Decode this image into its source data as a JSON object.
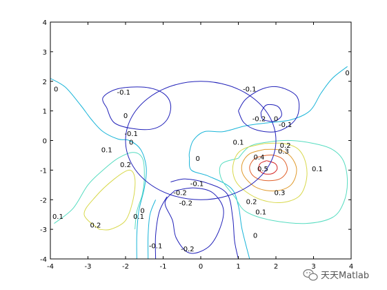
{
  "chart_data": {
    "type": "contour",
    "xlim": [
      -4,
      4
    ],
    "ylim": [
      -4,
      4
    ],
    "x_ticks": [
      "-4",
      "-3",
      "-2",
      "-1",
      "0",
      "1",
      "2",
      "3",
      "4"
    ],
    "y_ticks": [
      "4",
      "3",
      "2",
      "1",
      "0",
      "-1",
      "-2",
      "-3",
      "-4"
    ],
    "grid": false,
    "level_colors": {
      "-0.2": "#1f1fb8",
      "-0.1": "#1f1fb8",
      "0": "#18b4d8",
      "0.1": "#55dcc0",
      "0.2": "#d8d84a",
      "0.3": "#e09a2c",
      "0.4": "#e0602a",
      "0.5": "#d42020"
    },
    "circle": {
      "center": [
        0,
        0
      ],
      "radius": 2,
      "color": "#1f1fb8"
    },
    "contours": [
      {
        "level": "0",
        "points": [
          [
            -4,
            2.1
          ],
          [
            -3.6,
            1.8
          ],
          [
            -3.2,
            1.2
          ],
          [
            -2.9,
            0.7
          ],
          [
            -2.6,
            0.3
          ],
          [
            -2.2,
            0.05
          ],
          [
            -1.9,
            0.0
          ],
          [
            -1.6,
            -0.3
          ],
          [
            -1.45,
            -0.9
          ],
          [
            -1.5,
            -1.6
          ],
          [
            -1.65,
            -2.4
          ],
          [
            -1.7,
            -3.2
          ],
          [
            -1.7,
            -4
          ]
        ]
      },
      {
        "level": "0",
        "points": [
          [
            -0.3,
            -0.6
          ],
          [
            -0.25,
            -1.0
          ],
          [
            0.2,
            -1.2
          ],
          [
            0.8,
            -1.6
          ],
          [
            1.0,
            -2.2
          ],
          [
            1.1,
            -3.0
          ],
          [
            1.3,
            -4
          ]
        ]
      },
      {
        "level": "0",
        "points": [
          [
            3.9,
            2.5
          ],
          [
            3.5,
            2.1
          ],
          [
            3.2,
            1.6
          ],
          [
            2.9,
            1.0
          ],
          [
            2.4,
            0.7
          ],
          [
            1.8,
            0.6
          ],
          [
            1.2,
            0.5
          ],
          [
            0.6,
            0.3
          ],
          [
            0.1,
            0.3
          ],
          [
            -0.2,
            0.0
          ],
          [
            -0.3,
            -0.4
          ],
          [
            -0.3,
            -0.6
          ]
        ]
      },
      {
        "level": "0",
        "points": [
          [
            -1.2,
            -2.0
          ],
          [
            -1.35,
            -2.5
          ],
          [
            -1.4,
            -3.2
          ],
          [
            -1.4,
            -4
          ]
        ]
      },
      {
        "level": "0.1",
        "points": [
          [
            -3.9,
            -2.8
          ],
          [
            -3.4,
            -2.3
          ],
          [
            -3.0,
            -1.5
          ],
          [
            -2.6,
            -1.0
          ],
          [
            -2.2,
            -0.6
          ],
          [
            -1.8,
            -0.4
          ],
          [
            -1.55,
            -0.6
          ],
          [
            -1.5,
            -1.2
          ],
          [
            -1.55,
            -1.8
          ],
          [
            -1.7,
            -2.4
          ],
          [
            -1.75,
            -3.0
          ]
        ]
      },
      {
        "level": "0.1",
        "points": [
          [
            1.0,
            -0.6
          ],
          [
            0.55,
            -0.8
          ],
          [
            0.55,
            -1.3
          ],
          [
            0.9,
            -1.9
          ],
          [
            1.2,
            -2.4
          ],
          [
            1.9,
            -2.7
          ],
          [
            2.8,
            -2.8
          ],
          [
            3.5,
            -2.6
          ],
          [
            3.8,
            -2.1
          ],
          [
            3.9,
            -1.4
          ],
          [
            3.8,
            -0.7
          ],
          [
            3.5,
            -0.3
          ],
          [
            3.0,
            -0.1
          ],
          [
            2.4,
            0.0
          ],
          [
            1.8,
            -0.05
          ],
          [
            1.3,
            -0.2
          ],
          [
            1.0,
            -0.6
          ]
        ]
      },
      {
        "level": "0.2",
        "points": [
          [
            -2.7,
            -3.0
          ],
          [
            -3.1,
            -2.5
          ],
          [
            -2.8,
            -1.9
          ],
          [
            -2.3,
            -1.3
          ],
          [
            -1.9,
            -1.0
          ],
          [
            -1.75,
            -1.3
          ],
          [
            -1.8,
            -2.0
          ],
          [
            -2.0,
            -2.7
          ],
          [
            -2.4,
            -3.0
          ],
          [
            -2.7,
            -3.0
          ]
        ]
      },
      {
        "level": "0.2",
        "points": [
          [
            1.7,
            -0.1
          ],
          [
            1.2,
            -0.25
          ],
          [
            0.95,
            -0.5
          ],
          [
            0.85,
            -1.0
          ],
          [
            1.0,
            -1.5
          ],
          [
            1.5,
            -1.95
          ],
          [
            2.1,
            -2.1
          ],
          [
            2.6,
            -1.9
          ],
          [
            2.8,
            -1.4
          ],
          [
            2.8,
            -0.8
          ],
          [
            2.6,
            -0.3
          ],
          [
            2.2,
            -0.1
          ],
          [
            1.7,
            -0.1
          ]
        ]
      },
      {
        "level": "0.3",
        "points": [
          [
            1.7,
            -0.3
          ],
          [
            1.3,
            -0.45
          ],
          [
            1.1,
            -0.8
          ],
          [
            1.15,
            -1.2
          ],
          [
            1.5,
            -1.6
          ],
          [
            2.0,
            -1.7
          ],
          [
            2.4,
            -1.5
          ],
          [
            2.55,
            -1.0
          ],
          [
            2.4,
            -0.55
          ],
          [
            2.1,
            -0.32
          ],
          [
            1.7,
            -0.3
          ]
        ]
      },
      {
        "level": "0.4",
        "points": [
          [
            1.75,
            -0.5
          ],
          [
            1.45,
            -0.6
          ],
          [
            1.3,
            -0.9
          ],
          [
            1.4,
            -1.2
          ],
          [
            1.7,
            -1.35
          ],
          [
            2.1,
            -1.3
          ],
          [
            2.3,
            -1.0
          ],
          [
            2.2,
            -0.65
          ],
          [
            1.95,
            -0.5
          ],
          [
            1.75,
            -0.5
          ]
        ]
      },
      {
        "level": "0.5",
        "points": [
          [
            1.75,
            -0.68
          ],
          [
            1.58,
            -0.78
          ],
          [
            1.55,
            -0.98
          ],
          [
            1.68,
            -1.12
          ],
          [
            1.9,
            -1.12
          ],
          [
            2.03,
            -0.97
          ],
          [
            1.98,
            -0.78
          ],
          [
            1.75,
            -0.68
          ]
        ]
      },
      {
        "level": "-0.1",
        "points": [
          [
            -2.5,
            1.1
          ],
          [
            -2.6,
            1.45
          ],
          [
            -2.2,
            1.75
          ],
          [
            -1.5,
            1.8
          ],
          [
            -1.0,
            1.6
          ],
          [
            -0.8,
            1.2
          ],
          [
            -0.9,
            0.7
          ],
          [
            -1.25,
            0.4
          ],
          [
            -1.8,
            0.4
          ],
          [
            -2.3,
            0.6
          ],
          [
            -2.5,
            1.1
          ]
        ]
      },
      {
        "level": "-0.1",
        "points": [
          [
            1.0,
            1.0
          ],
          [
            1.2,
            1.4
          ],
          [
            1.65,
            1.75
          ],
          [
            2.1,
            1.8
          ],
          [
            2.55,
            1.5
          ],
          [
            2.6,
            0.95
          ],
          [
            2.4,
            0.55
          ],
          [
            2.0,
            0.3
          ],
          [
            1.5,
            0.35
          ],
          [
            1.15,
            0.6
          ],
          [
            1.0,
            1.0
          ]
        ]
      },
      {
        "level": "-0.2",
        "points": [
          [
            1.6,
            0.95
          ],
          [
            1.75,
            1.2
          ],
          [
            2.05,
            1.15
          ],
          [
            2.15,
            0.85
          ],
          [
            1.95,
            0.65
          ],
          [
            1.65,
            0.72
          ],
          [
            1.6,
            0.95
          ]
        ]
      },
      {
        "level": "-0.1",
        "points": [
          [
            -0.9,
            -1.9
          ],
          [
            -1.1,
            -2.4
          ],
          [
            -1.2,
            -3.2
          ],
          [
            -1.2,
            -4
          ]
        ]
      },
      {
        "level": "-0.1",
        "points": [
          [
            -0.8,
            -1.4
          ],
          [
            -0.4,
            -1.3
          ],
          [
            0.2,
            -1.45
          ],
          [
            0.7,
            -1.8
          ],
          [
            0.85,
            -2.6
          ],
          [
            0.9,
            -3.4
          ],
          [
            1.0,
            -4
          ]
        ]
      },
      {
        "level": "-0.2",
        "points": [
          [
            -0.7,
            -1.7
          ],
          [
            -0.95,
            -2.1
          ],
          [
            -0.75,
            -2.7
          ],
          [
            -0.65,
            -3.3
          ],
          [
            -0.3,
            -3.8
          ],
          [
            0.2,
            -3.6
          ],
          [
            0.5,
            -3.0
          ],
          [
            0.6,
            -2.3
          ],
          [
            0.3,
            -1.75
          ],
          [
            -0.2,
            -1.6
          ],
          [
            -0.7,
            -1.7
          ]
        ]
      }
    ],
    "labels": [
      {
        "text": "0",
        "at": [
          -3.85,
          1.75
        ]
      },
      {
        "text": "-0.1",
        "at": [
          -2.05,
          1.65
        ]
      },
      {
        "text": "0",
        "at": [
          -2.0,
          0.85
        ]
      },
      {
        "text": "-0.1",
        "at": [
          -1.85,
          0.25
        ]
      },
      {
        "text": "0",
        "at": [
          -1.85,
          -0.05
        ]
      },
      {
        "text": "0.1",
        "at": [
          -2.5,
          -0.3
        ]
      },
      {
        "text": "0.2",
        "at": [
          -2.0,
          -0.8
        ]
      },
      {
        "text": "0.1",
        "at": [
          -3.8,
          -2.55
        ]
      },
      {
        "text": "0.2",
        "at": [
          -2.8,
          -2.85
        ]
      },
      {
        "text": "0.1",
        "at": [
          -1.65,
          -2.55
        ]
      },
      {
        "text": "0",
        "at": [
          -1.55,
          -2.35
        ]
      },
      {
        "text": "-0.1",
        "at": [
          -1.2,
          -3.55
        ]
      },
      {
        "text": "-0.2",
        "at": [
          -0.55,
          -1.75
        ]
      },
      {
        "text": "-0.2",
        "at": [
          -0.4,
          -2.1
        ]
      },
      {
        "text": "-0.1",
        "at": [
          -0.1,
          -1.45
        ]
      },
      {
        "text": "-0.2",
        "at": [
          -0.35,
          -3.65
        ]
      },
      {
        "text": "0",
        "at": [
          -0.08,
          -0.6
        ]
      },
      {
        "text": "-0.1",
        "at": [
          1.3,
          1.75
        ]
      },
      {
        "text": "-0.2",
        "at": [
          1.55,
          0.75
        ]
      },
      {
        "text": "0",
        "at": [
          2.0,
          0.75
        ]
      },
      {
        "text": "-0.1",
        "at": [
          2.25,
          0.55
        ]
      },
      {
        "text": "0.1",
        "at": [
          1.0,
          -0.05
        ]
      },
      {
        "text": "0.2",
        "at": [
          2.25,
          -0.15
        ]
      },
      {
        "text": "0.3",
        "at": [
          2.2,
          -0.35
        ]
      },
      {
        "text": "0.4",
        "at": [
          1.55,
          -0.55
        ]
      },
      {
        "text": "0.5",
        "at": [
          1.65,
          -0.95
        ]
      },
      {
        "text": "0.1",
        "at": [
          3.1,
          -0.95
        ]
      },
      {
        "text": "0.2",
        "at": [
          1.35,
          -2.05
        ]
      },
      {
        "text": "0.3",
        "at": [
          2.1,
          -1.75
        ]
      },
      {
        "text": "0.1",
        "at": [
          1.6,
          -2.4
        ]
      },
      {
        "text": "0",
        "at": [
          1.45,
          -3.2
        ]
      },
      {
        "text": "0",
        "at": [
          3.9,
          2.3
        ]
      }
    ]
  },
  "watermark": {
    "text": "天天Matlab",
    "icon": "wechat-icon"
  }
}
